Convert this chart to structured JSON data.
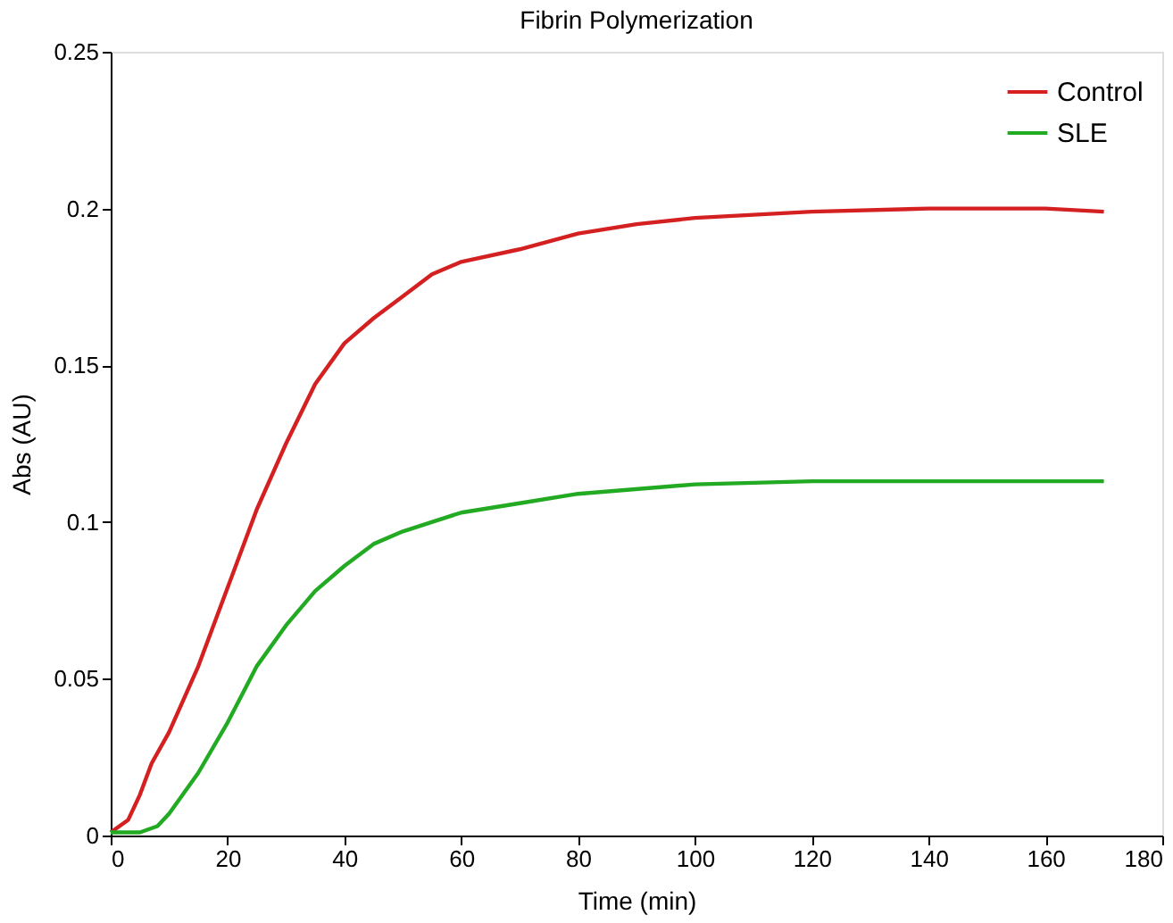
{
  "chart_data": {
    "type": "line",
    "title": "Fibrin Polymerization",
    "xlabel": "Time (min)",
    "ylabel": "Abs (AU)",
    "xlim": [
      0,
      180
    ],
    "xticks": [
      0,
      20,
      40,
      60,
      80,
      100,
      120,
      140,
      160,
      180
    ],
    "ylim": [
      0,
      0.25
    ],
    "yticks": [
      0,
      0.05,
      0.1,
      0.15,
      0.2,
      0.25
    ],
    "grid": false,
    "legend": "top right",
    "marker": "none",
    "line_style": "solid",
    "series": [
      {
        "name": "Control",
        "color": "#d42020",
        "x": [
          0,
          3,
          5,
          7,
          10,
          15,
          20,
          25,
          30,
          35,
          40,
          45,
          50,
          55,
          60,
          70,
          80,
          90,
          100,
          120,
          140,
          160,
          170
        ],
        "values": [
          0.001,
          0.005,
          0.013,
          0.023,
          0.033,
          0.054,
          0.079,
          0.104,
          0.125,
          0.144,
          0.157,
          0.165,
          0.172,
          0.179,
          0.183,
          0.187,
          0.192,
          0.195,
          0.197,
          0.199,
          0.2,
          0.2,
          0.199
        ]
      },
      {
        "name": "SLE",
        "color": "#22aa22",
        "x": [
          0,
          5,
          8,
          10,
          15,
          20,
          25,
          30,
          35,
          40,
          45,
          50,
          60,
          70,
          80,
          100,
          120,
          140,
          170
        ],
        "values": [
          0.001,
          0.001,
          0.003,
          0.007,
          0.02,
          0.036,
          0.054,
          0.067,
          0.078,
          0.086,
          0.093,
          0.097,
          0.103,
          0.106,
          0.109,
          0.112,
          0.113,
          0.113,
          0.113
        ]
      }
    ]
  }
}
